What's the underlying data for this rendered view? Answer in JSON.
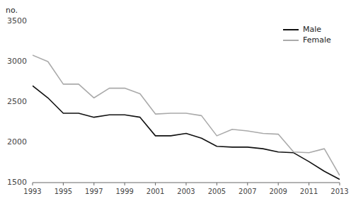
{
  "chart_data": {
    "type": "line",
    "ylabel": "no.",
    "x": [
      1993,
      1994,
      1995,
      1996,
      1997,
      1998,
      1999,
      2000,
      2001,
      2002,
      2003,
      2004,
      2005,
      2006,
      2007,
      2008,
      2009,
      2010,
      2011,
      2012,
      2013
    ],
    "series": [
      {
        "name": "Male",
        "color": "#111111",
        "values": [
          2700,
          2550,
          2360,
          2360,
          2310,
          2340,
          2340,
          2310,
          2080,
          2080,
          2110,
          2050,
          1950,
          1940,
          1940,
          1920,
          1880,
          1870,
          1760,
          1640,
          1540
        ]
      },
      {
        "name": "Female",
        "color": "#aaaaaa",
        "values": [
          3080,
          3000,
          2720,
          2720,
          2550,
          2670,
          2670,
          2600,
          2350,
          2360,
          2360,
          2330,
          2080,
          2160,
          2140,
          2110,
          2100,
          1880,
          1870,
          1920,
          1590
        ]
      }
    ],
    "xlim": [
      1993,
      2013
    ],
    "ylim": [
      1500,
      3500
    ],
    "xticks": [
      1993,
      1995,
      1997,
      1999,
      2001,
      2003,
      2005,
      2007,
      2009,
      2011,
      2013
    ],
    "yticks": [
      1500,
      2000,
      2500,
      3000,
      3500
    ],
    "grid": false,
    "legend": "upper right"
  }
}
